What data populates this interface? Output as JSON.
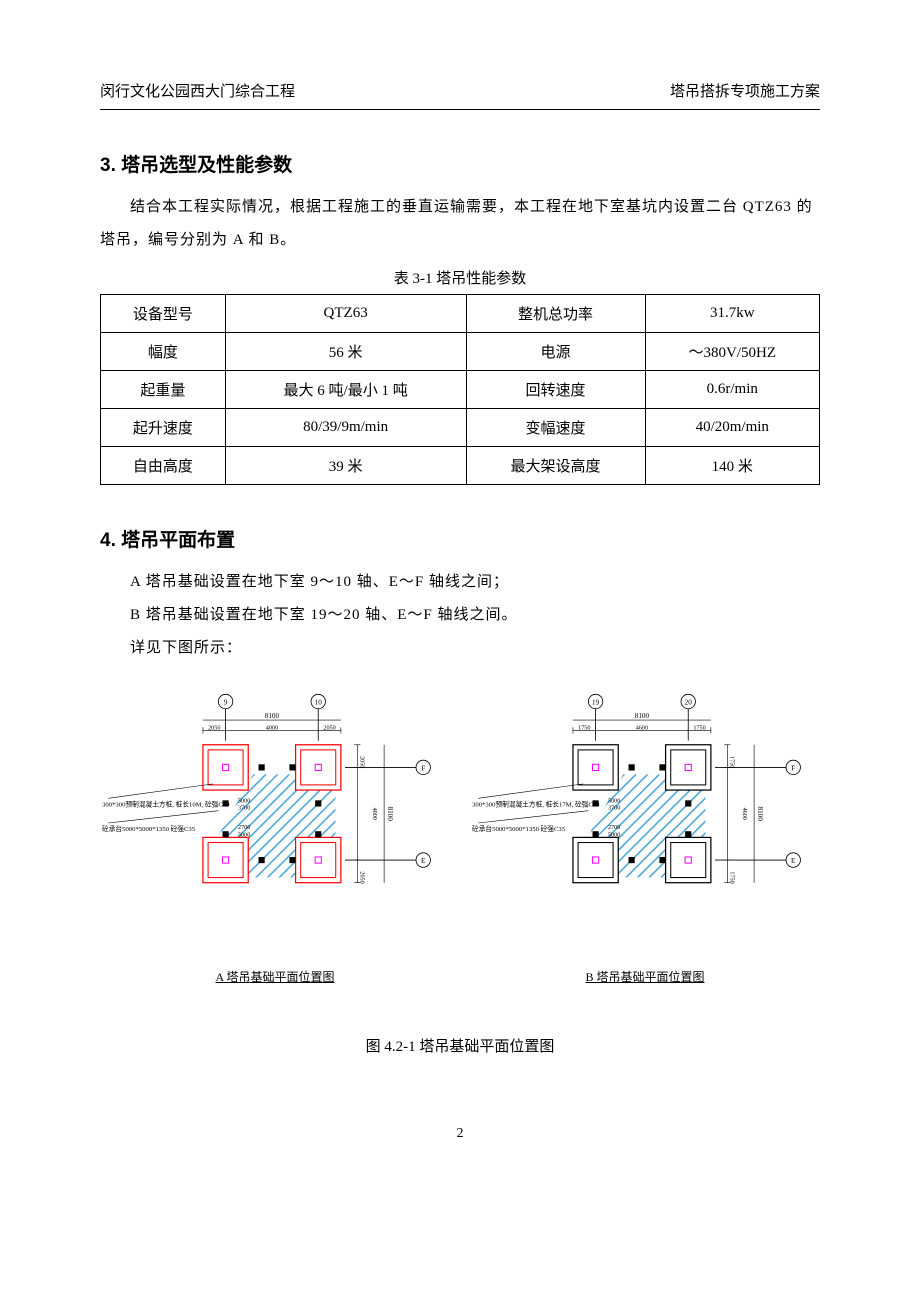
{
  "header": {
    "left": "闵行文化公园西大门综合工程",
    "right": "塔吊搭拆专项施工方案"
  },
  "section3": {
    "heading": "3. 塔吊选型及性能参数",
    "p1": "结合本工程实际情况，根据工程施工的垂直运输需要，本工程在地下室基坑内设置二台 QTZ63 的塔吊，编号分别为 A 和 B。",
    "table_caption": "表 3-1 塔吊性能参数",
    "table": {
      "rows": [
        [
          "设备型号",
          "QTZ63",
          "整机总功率",
          "31.7kw"
        ],
        [
          "幅度",
          "56 米",
          "电源",
          "～380V/50HZ"
        ],
        [
          "起重量",
          "最大 6 吨/最小 1 吨",
          "回转速度",
          "0.6r/min"
        ],
        [
          "起升速度",
          "80/39/9m/min",
          "变幅速度",
          "40/20m/min"
        ],
        [
          "自由高度",
          "39 米",
          "最大架设高度",
          "140 米"
        ]
      ]
    }
  },
  "section4": {
    "heading": "4. 塔吊平面布置",
    "p1": "A 塔吊基础设置在地下室 9～10 轴、E～F 轴线之间；",
    "p2": "B 塔吊基础设置在地下室 19～20 轴、E～F 轴线之间。",
    "p3": "详见下图所示：",
    "figure_caption": "图 4.2-1 塔吊基础平面位置图",
    "diagram_a": {
      "sub_caption": "A 塔吊基础平面位置图",
      "top_axis_left": "9",
      "top_axis_right": "10",
      "right_axis_top": "F",
      "right_axis_bottom": "E",
      "dim_top_total": "8100",
      "dim_top_seg": [
        "2050",
        "4000",
        "2050"
      ],
      "dim_mid": [
        "5000",
        "3700"
      ],
      "dim_mid2": [
        "2700",
        "5000"
      ],
      "dim_right_seg": [
        "2050",
        "4000",
        "2050"
      ],
      "dim_right_total": "8100",
      "note1": "300*300预制混凝土方桩, 桩长10M, 砼强C40",
      "note2": "砼承台5000*5000*1350 砼强C35",
      "pile_color": "#ff0000",
      "center_color": "#ff00ff",
      "fill_color": "#ffffff",
      "hatch_color": "#4aa6d6",
      "line_color": "#000000"
    },
    "diagram_b": {
      "sub_caption": "B 塔吊基础平面位置图",
      "top_axis_left": "19",
      "top_axis_right": "20",
      "right_axis_top": "F",
      "right_axis_bottom": "E",
      "dim_top_total": "8100",
      "dim_top_seg": [
        "1750",
        "4600",
        "1750"
      ],
      "dim_mid": [
        "5000",
        "3700"
      ],
      "dim_mid2": [
        "2700",
        "5000"
      ],
      "dim_right_seg": [
        "1750",
        "4600",
        "1750"
      ],
      "dim_right_total": "8100",
      "note1": "300*300预制混凝土方桩, 桩长17M, 砼强C40",
      "note2": "砼承台5000*5000*1350 砼强C35",
      "pile_color": "#000000",
      "center_color": "#ff00ff",
      "fill_color": "#ffffff",
      "hatch_color": "#4aa6d6",
      "line_color": "#000000"
    }
  },
  "page_number": "2"
}
